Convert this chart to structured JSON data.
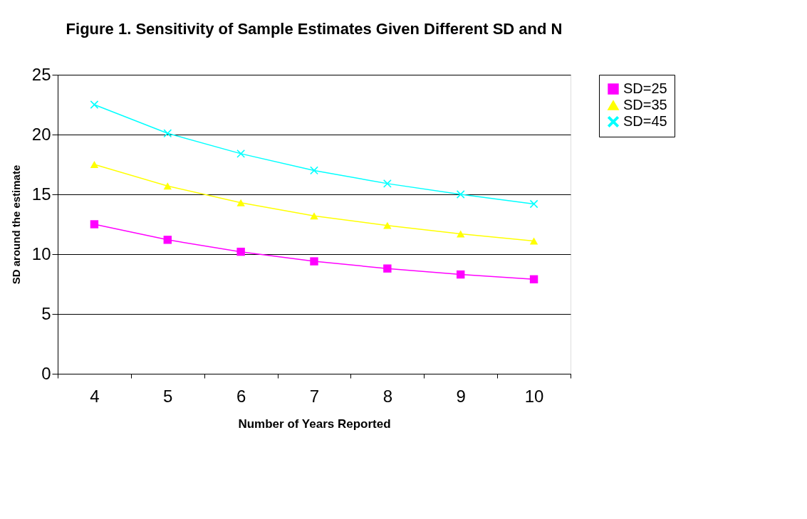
{
  "chart_data": {
    "type": "line",
    "title": "Figure 1. Sensitivity of Sample Estimates Given Different SD and N",
    "xlabel": "Number of Years Reported",
    "ylabel": "SD around the estimate",
    "categories": [
      "4",
      "5",
      "6",
      "7",
      "8",
      "9",
      "10"
    ],
    "series": [
      {
        "name": "SD=25",
        "color": "#ff00ff",
        "marker": "square",
        "values": [
          12.5,
          11.2,
          10.2,
          9.4,
          8.8,
          8.3,
          7.9
        ]
      },
      {
        "name": "SD=35",
        "color": "#ffff00",
        "marker": "triangle",
        "values": [
          17.5,
          15.7,
          14.3,
          13.2,
          12.4,
          11.7,
          11.1
        ]
      },
      {
        "name": "SD=45",
        "color": "#00ffff",
        "marker": "cross",
        "values": [
          22.5,
          20.1,
          18.4,
          17.0,
          15.9,
          15.0,
          14.2
        ]
      }
    ],
    "ylim": [
      0,
      25
    ],
    "yticks": [
      0,
      5,
      10,
      15,
      20,
      25
    ],
    "grid": "y",
    "legend": "right",
    "line_style": "solid"
  }
}
